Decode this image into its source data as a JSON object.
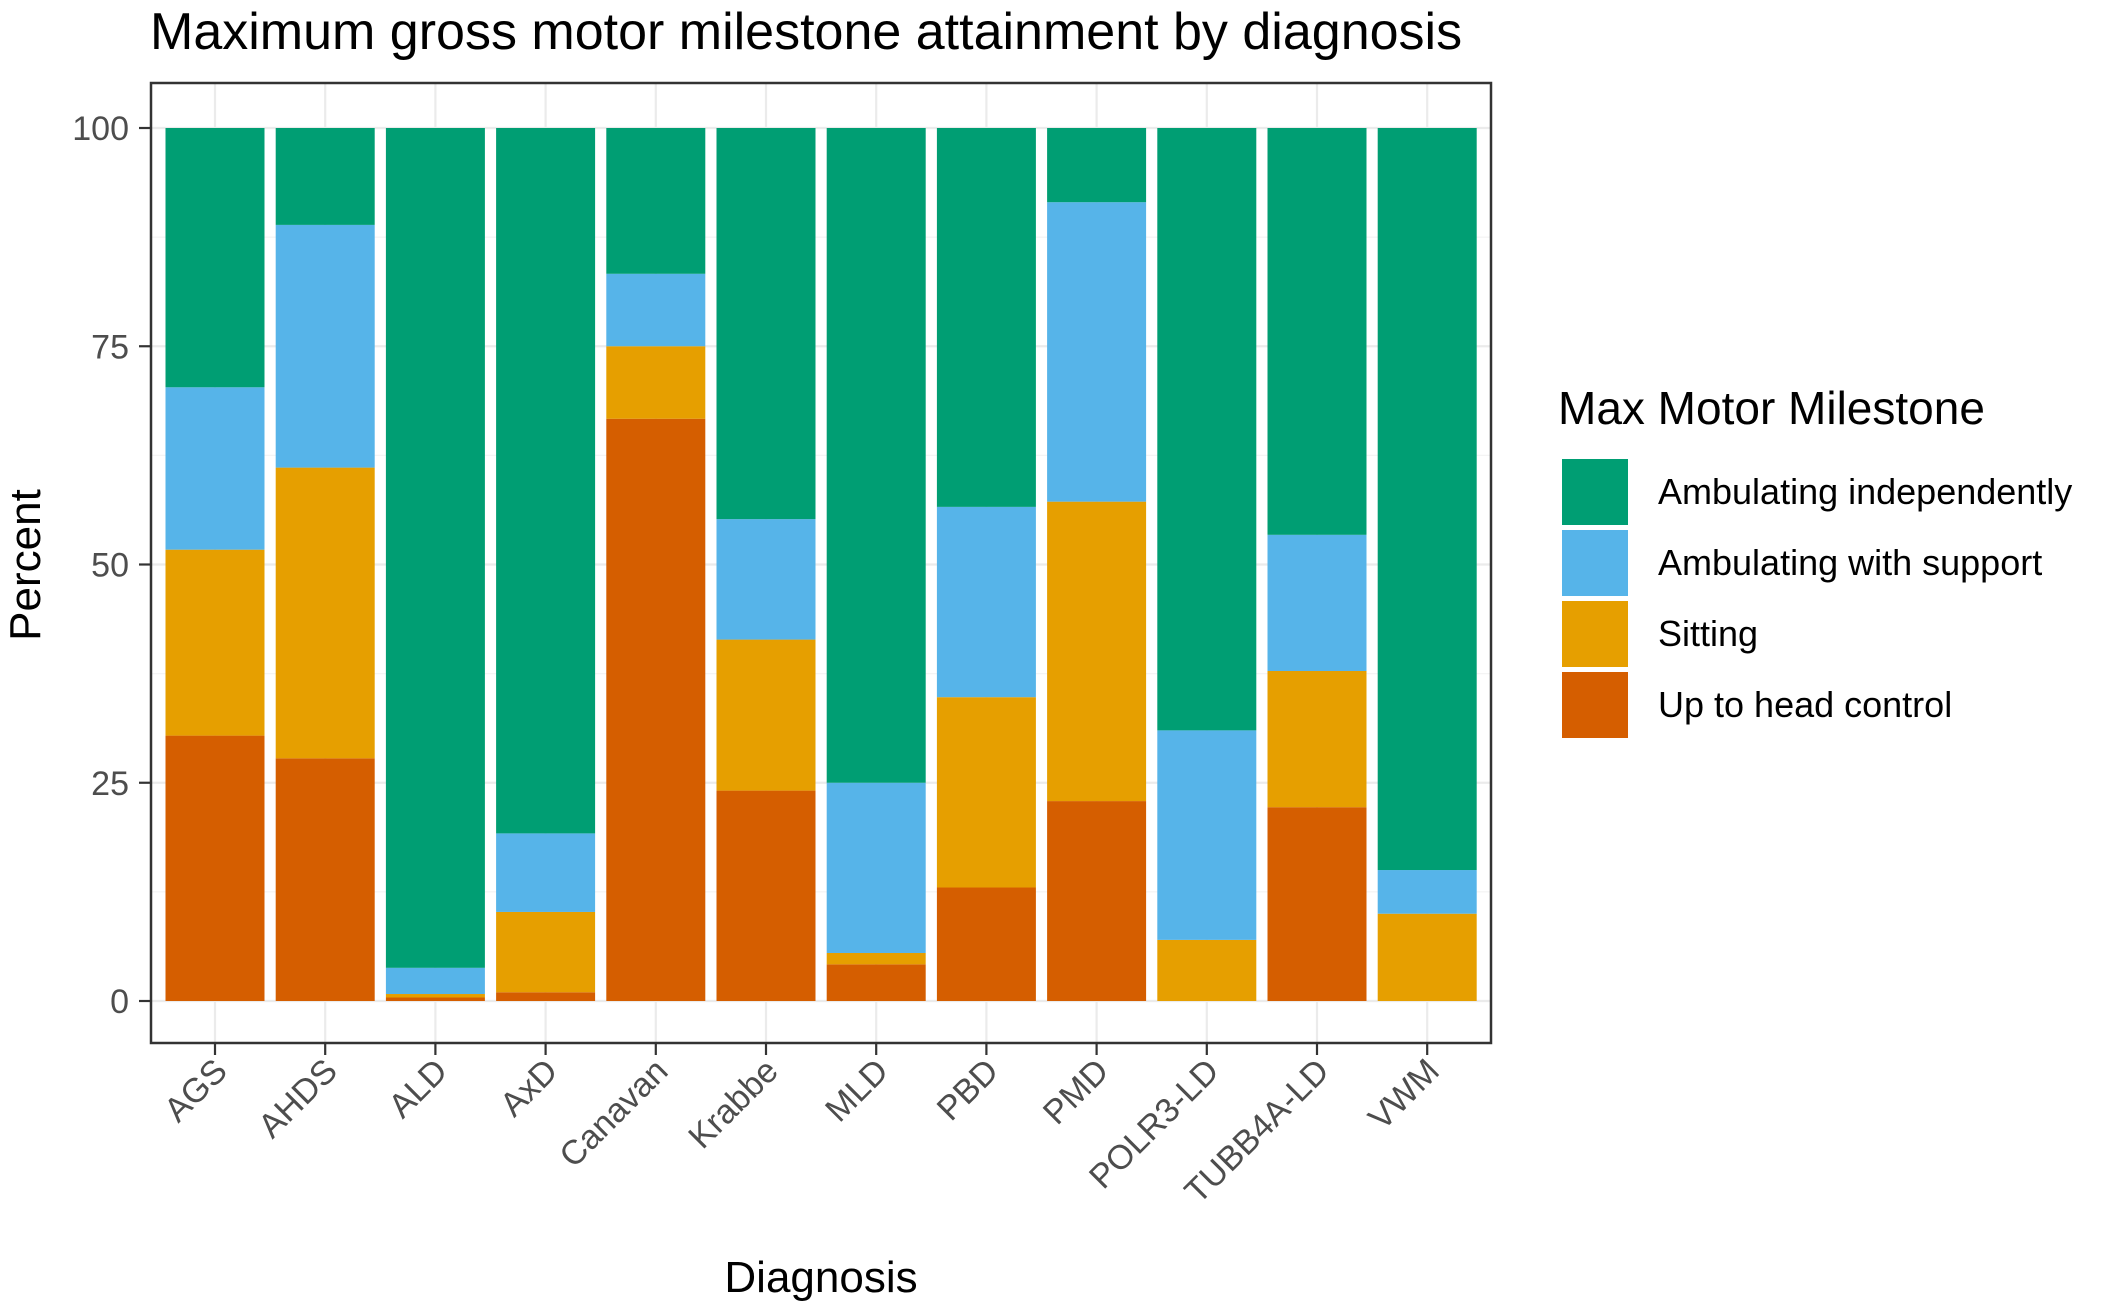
{
  "chart_data": {
    "type": "bar",
    "stacked": true,
    "title": "Maximum gross motor milestone attainment by diagnosis",
    "xlabel": "Diagnosis",
    "ylabel": "Percent",
    "ylim": [
      0,
      100
    ],
    "yticks": [
      0,
      25,
      50,
      75,
      100
    ],
    "grid": true,
    "legend_title": "Max Motor Milestone",
    "legend_position": "right",
    "categories": [
      "AGS",
      "AHDS",
      "ALD",
      "AxD",
      "Canavan",
      "Krabbe",
      "MLD",
      "PBD",
      "PMD",
      "POLR3-LD",
      "TUBB4A-LD",
      "VWM"
    ],
    "series": [
      {
        "name": "Up to head control",
        "color": "#D55E00",
        "values": [
          30.4,
          27.8,
          0.4,
          1.0,
          66.7,
          24.1,
          4.2,
          13.0,
          22.9,
          0.0,
          22.2,
          0.0
        ]
      },
      {
        "name": "Sitting",
        "color": "#E69F00",
        "values": [
          21.3,
          33.3,
          0.4,
          9.2,
          8.3,
          17.3,
          1.3,
          21.8,
          34.3,
          7.0,
          15.6,
          10.0
        ]
      },
      {
        "name": "Ambulating with support",
        "color": "#56B4E9",
        "values": [
          18.6,
          27.8,
          3.0,
          9.0,
          8.3,
          13.8,
          19.5,
          21.8,
          34.3,
          24.0,
          15.6,
          5.0
        ]
      },
      {
        "name": "Ambulating independently",
        "color": "#009E73",
        "values": [
          29.7,
          11.1,
          96.2,
          80.8,
          16.7,
          44.8,
          75.0,
          43.4,
          8.5,
          69.0,
          46.6,
          85.0
        ]
      }
    ],
    "legend_order": [
      "Ambulating independently",
      "Ambulating with support",
      "Sitting",
      "Up to head control"
    ]
  }
}
